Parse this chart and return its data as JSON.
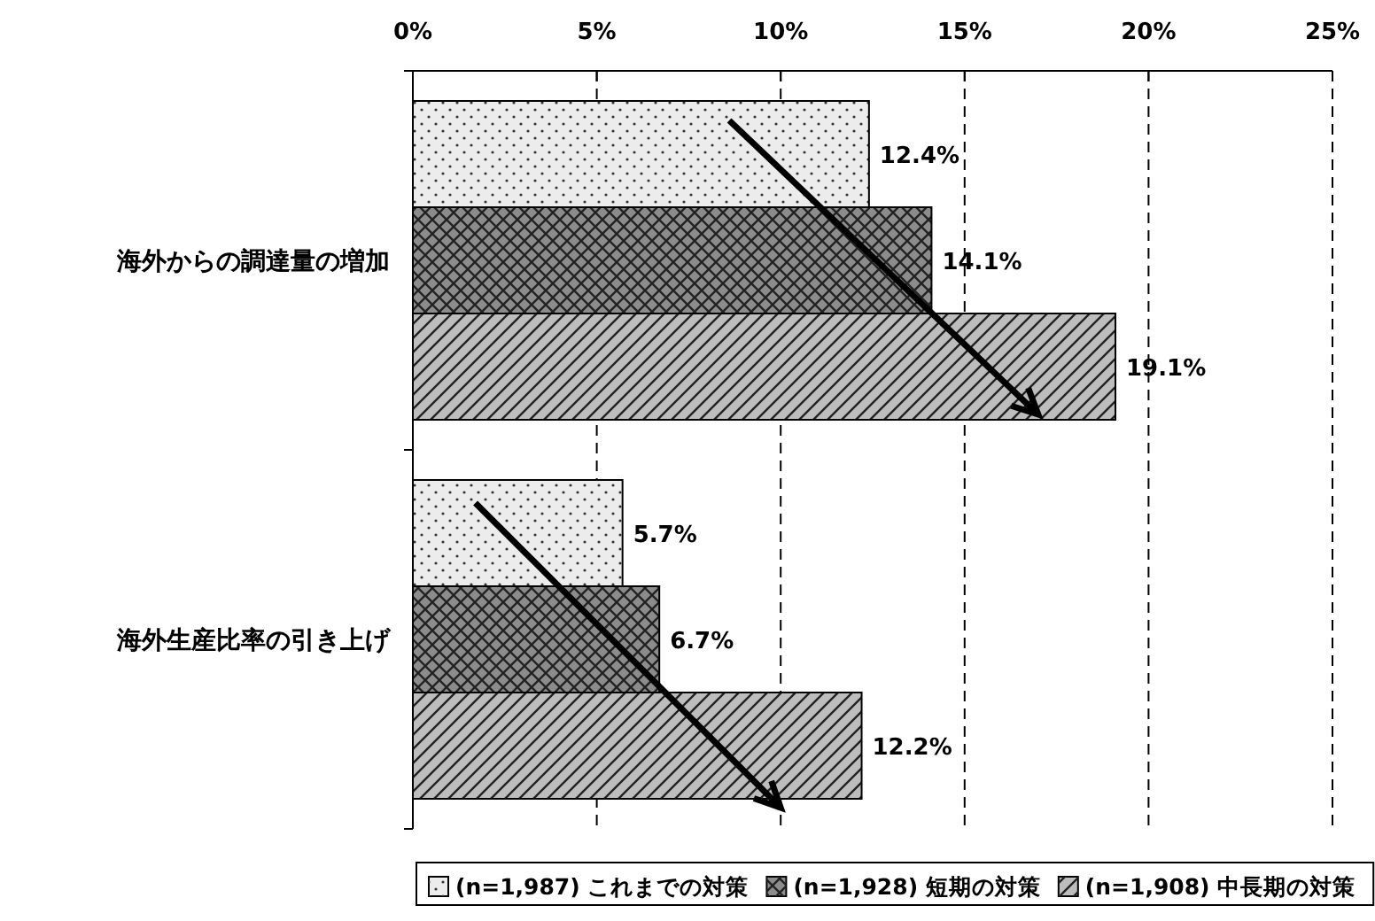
{
  "chart_data": {
    "type": "bar",
    "orientation": "horizontal",
    "categories": [
      "海外からの調達量の増加",
      "海外生産比率の引き上げ"
    ],
    "series": [
      {
        "name": "(n=1,987) これまでの対策",
        "color": "#ececec",
        "values": [
          12.4,
          5.7
        ],
        "value_labels": [
          "12.4%",
          "5.7%"
        ]
      },
      {
        "name": "(n=1,928) 短期の対策",
        "color": "#8c8c8c",
        "values": [
          14.1,
          6.7
        ],
        "value_labels": [
          "14.1%",
          "6.7%"
        ]
      },
      {
        "name": "(n=1,908) 中長期の対策",
        "color": "#bdbdbd",
        "values": [
          19.1,
          12.2
        ],
        "value_labels": [
          "19.1%",
          "12.2%"
        ]
      }
    ],
    "xlim": [
      0,
      25
    ],
    "xticks": [
      {
        "value": 0,
        "label": "0%"
      },
      {
        "value": 5,
        "label": "5%"
      },
      {
        "value": 10,
        "label": "10%"
      },
      {
        "value": 15,
        "label": "15%"
      },
      {
        "value": 20,
        "label": "20%"
      },
      {
        "value": 25,
        "label": "25%"
      }
    ],
    "grid": "x",
    "legend": "bottom"
  }
}
